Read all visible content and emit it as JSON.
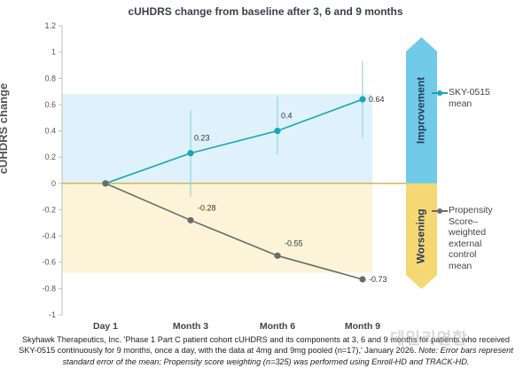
{
  "chart_data": {
    "type": "line",
    "title": "cUHDRS change from baseline after 3, 6 and 9 months",
    "ylabel": "cUHDRS change",
    "xlabel": "",
    "categories": [
      "Day 1",
      "Month 3",
      "Month 6",
      "Month 9"
    ],
    "ylim": [
      -1,
      1.2
    ],
    "yticks": [
      "1.2",
      "1",
      "0.8",
      "0.6",
      "0.4",
      "0.2",
      "0",
      "-0.2",
      "-0.4",
      "-0.6",
      "-0.8",
      "-1"
    ],
    "series": [
      {
        "name": "SKY-0515 mean",
        "legend_lines": [
          "SKY-0515",
          "mean"
        ],
        "color": "#1aa5b8",
        "values": [
          0,
          0.23,
          0.4,
          0.64
        ],
        "labels": [
          "",
          "0.23",
          "0.4",
          "0.64"
        ],
        "error_low": [
          null,
          -0.1,
          0.22,
          0.35
        ],
        "error_high": [
          null,
          0.55,
          0.66,
          0.93
        ]
      },
      {
        "name": "Propensity Score–weighted external control mean",
        "legend_lines": [
          "Propensity",
          "Score–",
          "weighted",
          "external",
          "control",
          "mean"
        ],
        "color": "#6b6b6b",
        "values": [
          0,
          -0.28,
          -0.55,
          -0.73
        ],
        "labels": [
          "",
          "-0.28",
          "-0.55",
          "-0.73"
        ]
      }
    ],
    "bands": {
      "improvement": {
        "label": "Improvement",
        "fill": "#dff1fa",
        "arrow_color": "#6fcbe8",
        "range": [
          0,
          0.68
        ]
      },
      "worsening": {
        "label": "Worsening",
        "fill": "#fdf3d8",
        "arrow_color": "#f5d873",
        "range": [
          -0.68,
          0
        ]
      }
    },
    "grid": false,
    "legend_position": "right"
  },
  "caption": {
    "text": "Skyhawk Therapeutics, Inc. 'Phase 1 Part C patient cohort cUHDRS and its components at 3, 6 and 9 months for patients who received SKY-0515 continuously for 9 months, once a day, with the data at 4mg and 9mg pooled (n=17),' January 2026.",
    "note": "Note: Error bars represent standard error of the mean; Propensity score weighting (n=325) was performed using Enroll-HD and TRACK-HD."
  },
  "watermark": "데일리연합"
}
